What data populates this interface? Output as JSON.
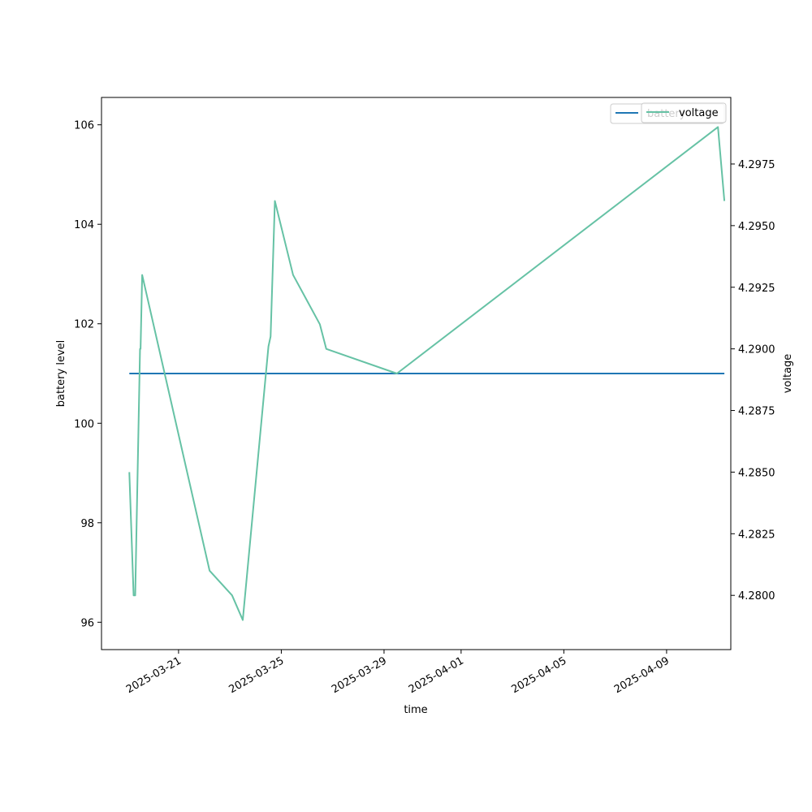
{
  "chart_data": {
    "type": "line",
    "title": "",
    "xlabel": "time",
    "ylabel": "battery level",
    "y2label": "voltage",
    "x_axis_type": "date",
    "xlim": [
      "2025-03-18T00:00:00",
      "2025-04-11T12:00:00"
    ],
    "ylim": [
      95.45,
      106.55
    ],
    "y2lim": [
      4.2778,
      4.3002
    ],
    "x_ticks": [
      "2025-03-21",
      "2025-03-25",
      "2025-03-29",
      "2025-04-01",
      "2025-04-05",
      "2025-04-09"
    ],
    "y_ticks": [
      96,
      98,
      100,
      102,
      104,
      106
    ],
    "y2_ticks": [
      4.28,
      4.2825,
      4.285,
      4.2875,
      4.29,
      4.2925,
      4.295,
      4.2975
    ],
    "y2_tick_labels": [
      "4.2800",
      "4.2825",
      "4.2850",
      "4.2875",
      "4.2900",
      "4.2925",
      "4.2950",
      "4.2975"
    ],
    "grid": false,
    "legend_position": "top-right",
    "series": [
      {
        "name": "battery",
        "axis": "left",
        "color": "#1f77b4",
        "x": [
          "2025-03-19T02:00:00",
          "2025-04-11T06:00:00"
        ],
        "values": [
          101,
          101
        ]
      },
      {
        "name": "voltage",
        "axis": "right",
        "color": "#66c2a5",
        "x": [
          "2025-03-19T02:00:00",
          "2025-03-19T06:00:00",
          "2025-03-19T07:30:00",
          "2025-03-19T12:00:00",
          "2025-03-19T12:30:00",
          "2025-03-19T14:00:00",
          "2025-03-22T05:00:00",
          "2025-03-23T02:00:00",
          "2025-03-23T12:00:00",
          "2025-03-24T12:00:00",
          "2025-03-24T14:00:00",
          "2025-03-24T18:00:00",
          "2025-03-25T11:00:00",
          "2025-03-26T12:00:00",
          "2025-03-26T18:00:00",
          "2025-03-29T12:00:00",
          "2025-04-11T00:00:00",
          "2025-04-11T06:00:00"
        ],
        "values": [
          4.285,
          4.28,
          4.28,
          4.29,
          4.29,
          4.293,
          4.281,
          4.28,
          4.279,
          4.2901,
          4.2905,
          4.296,
          4.293,
          4.291,
          4.29,
          4.289,
          4.299,
          4.296
        ]
      }
    ]
  }
}
